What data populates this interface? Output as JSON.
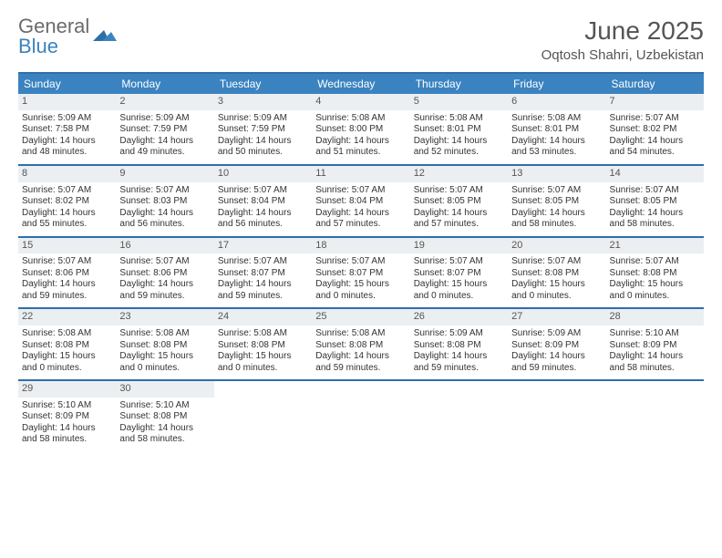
{
  "brand": {
    "line1": "General",
    "line2": "Blue"
  },
  "title": "June 2025",
  "location": "Oqtosh Shahri, Uzbekistan",
  "colors": {
    "header_bg": "#3b83c0",
    "rule": "#2f6fa7",
    "daynum_bg": "#eceff1",
    "text": "#333333",
    "brand_gray": "#6b6b6b",
    "brand_blue": "#3b83c0"
  },
  "day_names": [
    "Sunday",
    "Monday",
    "Tuesday",
    "Wednesday",
    "Thursday",
    "Friday",
    "Saturday"
  ],
  "days": [
    {
      "n": 1,
      "sunrise": "5:09 AM",
      "sunset": "7:58 PM",
      "dl_h": 14,
      "dl_m": 48
    },
    {
      "n": 2,
      "sunrise": "5:09 AM",
      "sunset": "7:59 PM",
      "dl_h": 14,
      "dl_m": 49
    },
    {
      "n": 3,
      "sunrise": "5:09 AM",
      "sunset": "7:59 PM",
      "dl_h": 14,
      "dl_m": 50
    },
    {
      "n": 4,
      "sunrise": "5:08 AM",
      "sunset": "8:00 PM",
      "dl_h": 14,
      "dl_m": 51
    },
    {
      "n": 5,
      "sunrise": "5:08 AM",
      "sunset": "8:01 PM",
      "dl_h": 14,
      "dl_m": 52
    },
    {
      "n": 6,
      "sunrise": "5:08 AM",
      "sunset": "8:01 PM",
      "dl_h": 14,
      "dl_m": 53
    },
    {
      "n": 7,
      "sunrise": "5:07 AM",
      "sunset": "8:02 PM",
      "dl_h": 14,
      "dl_m": 54
    },
    {
      "n": 8,
      "sunrise": "5:07 AM",
      "sunset": "8:02 PM",
      "dl_h": 14,
      "dl_m": 55
    },
    {
      "n": 9,
      "sunrise": "5:07 AM",
      "sunset": "8:03 PM",
      "dl_h": 14,
      "dl_m": 56
    },
    {
      "n": 10,
      "sunrise": "5:07 AM",
      "sunset": "8:04 PM",
      "dl_h": 14,
      "dl_m": 56
    },
    {
      "n": 11,
      "sunrise": "5:07 AM",
      "sunset": "8:04 PM",
      "dl_h": 14,
      "dl_m": 57
    },
    {
      "n": 12,
      "sunrise": "5:07 AM",
      "sunset": "8:05 PM",
      "dl_h": 14,
      "dl_m": 57
    },
    {
      "n": 13,
      "sunrise": "5:07 AM",
      "sunset": "8:05 PM",
      "dl_h": 14,
      "dl_m": 58
    },
    {
      "n": 14,
      "sunrise": "5:07 AM",
      "sunset": "8:05 PM",
      "dl_h": 14,
      "dl_m": 58
    },
    {
      "n": 15,
      "sunrise": "5:07 AM",
      "sunset": "8:06 PM",
      "dl_h": 14,
      "dl_m": 59
    },
    {
      "n": 16,
      "sunrise": "5:07 AM",
      "sunset": "8:06 PM",
      "dl_h": 14,
      "dl_m": 59
    },
    {
      "n": 17,
      "sunrise": "5:07 AM",
      "sunset": "8:07 PM",
      "dl_h": 14,
      "dl_m": 59
    },
    {
      "n": 18,
      "sunrise": "5:07 AM",
      "sunset": "8:07 PM",
      "dl_h": 15,
      "dl_m": 0
    },
    {
      "n": 19,
      "sunrise": "5:07 AM",
      "sunset": "8:07 PM",
      "dl_h": 15,
      "dl_m": 0
    },
    {
      "n": 20,
      "sunrise": "5:07 AM",
      "sunset": "8:08 PM",
      "dl_h": 15,
      "dl_m": 0
    },
    {
      "n": 21,
      "sunrise": "5:07 AM",
      "sunset": "8:08 PM",
      "dl_h": 15,
      "dl_m": 0
    },
    {
      "n": 22,
      "sunrise": "5:08 AM",
      "sunset": "8:08 PM",
      "dl_h": 15,
      "dl_m": 0
    },
    {
      "n": 23,
      "sunrise": "5:08 AM",
      "sunset": "8:08 PM",
      "dl_h": 15,
      "dl_m": 0
    },
    {
      "n": 24,
      "sunrise": "5:08 AM",
      "sunset": "8:08 PM",
      "dl_h": 15,
      "dl_m": 0
    },
    {
      "n": 25,
      "sunrise": "5:08 AM",
      "sunset": "8:08 PM",
      "dl_h": 14,
      "dl_m": 59
    },
    {
      "n": 26,
      "sunrise": "5:09 AM",
      "sunset": "8:08 PM",
      "dl_h": 14,
      "dl_m": 59
    },
    {
      "n": 27,
      "sunrise": "5:09 AM",
      "sunset": "8:09 PM",
      "dl_h": 14,
      "dl_m": 59
    },
    {
      "n": 28,
      "sunrise": "5:10 AM",
      "sunset": "8:09 PM",
      "dl_h": 14,
      "dl_m": 58
    },
    {
      "n": 29,
      "sunrise": "5:10 AM",
      "sunset": "8:09 PM",
      "dl_h": 14,
      "dl_m": 58
    },
    {
      "n": 30,
      "sunrise": "5:10 AM",
      "sunset": "8:08 PM",
      "dl_h": 14,
      "dl_m": 58
    }
  ],
  "labels": {
    "sunrise": "Sunrise:",
    "sunset": "Sunset:",
    "daylight_prefix": "Daylight:",
    "hours_word": "hours",
    "and_word": "and",
    "minutes_word": "minutes."
  },
  "layout": {
    "start_offset": 0,
    "total_cells": 35
  }
}
